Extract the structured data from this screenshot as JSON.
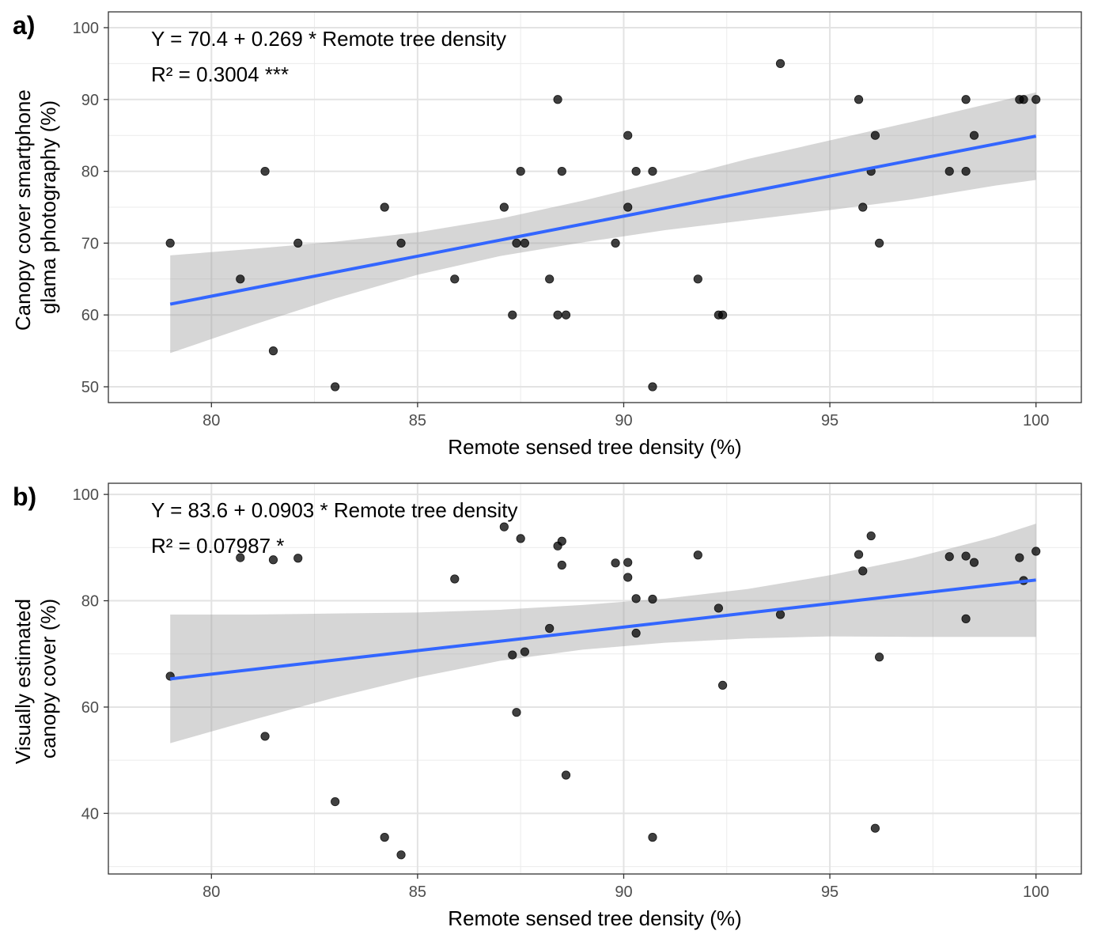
{
  "chart_data": [
    {
      "panel_label": "a)",
      "type": "scatter",
      "xlabel": "Remote sensed tree density (%)",
      "ylabel_lines": [
        "Canopy cover smartphone",
        "glama photography (%)"
      ],
      "xlim": [
        77.5,
        101.1
      ],
      "ylim": [
        47.8,
        102.2
      ],
      "x_ticks": [
        80,
        85,
        90,
        95,
        100
      ],
      "y_ticks": [
        50,
        60,
        70,
        80,
        90,
        100
      ],
      "x_tick_labels": [
        "80",
        "85",
        "90",
        "95",
        "100"
      ],
      "y_tick_labels": [
        "50",
        "60",
        "70",
        "80",
        "90",
        "100"
      ],
      "annotation_lines": [
        "Y = 70.4 + 0.269 * Remote tree density",
        "R² = 0.3004 ***"
      ],
      "regression": {
        "color": "#3366ff",
        "x": [
          79,
          100
        ],
        "y": [
          61.5,
          84.9
        ],
        "ci_x": [
          79,
          81,
          83,
          85,
          87,
          89,
          91,
          93,
          95,
          97,
          99,
          100
        ],
        "ci_lower": [
          54.7,
          58.6,
          62.3,
          65.6,
          68.2,
          70.1,
          71.8,
          73.2,
          74.6,
          76.1,
          78.0,
          78.8
        ],
        "ci_upper": [
          68.3,
          69.2,
          70.2,
          71.5,
          73.4,
          75.9,
          78.7,
          81.7,
          84.3,
          86.9,
          89.6,
          91.0
        ]
      },
      "points": [
        {
          "x": 79.0,
          "y": 70
        },
        {
          "x": 80.7,
          "y": 65
        },
        {
          "x": 81.3,
          "y": 80
        },
        {
          "x": 81.5,
          "y": 55
        },
        {
          "x": 82.1,
          "y": 70
        },
        {
          "x": 83.0,
          "y": 50
        },
        {
          "x": 84.2,
          "y": 75
        },
        {
          "x": 84.6,
          "y": 70
        },
        {
          "x": 85.9,
          "y": 65
        },
        {
          "x": 87.1,
          "y": 75
        },
        {
          "x": 87.3,
          "y": 60
        },
        {
          "x": 87.4,
          "y": 70
        },
        {
          "x": 87.5,
          "y": 80
        },
        {
          "x": 87.6,
          "y": 70
        },
        {
          "x": 88.2,
          "y": 65
        },
        {
          "x": 88.4,
          "y": 90
        },
        {
          "x": 88.4,
          "y": 60
        },
        {
          "x": 88.5,
          "y": 80
        },
        {
          "x": 88.6,
          "y": 60
        },
        {
          "x": 89.8,
          "y": 70
        },
        {
          "x": 90.1,
          "y": 85
        },
        {
          "x": 90.1,
          "y": 75
        },
        {
          "x": 90.3,
          "y": 80
        },
        {
          "x": 90.7,
          "y": 80
        },
        {
          "x": 90.7,
          "y": 50
        },
        {
          "x": 91.8,
          "y": 65
        },
        {
          "x": 92.3,
          "y": 60
        },
        {
          "x": 92.4,
          "y": 60
        },
        {
          "x": 93.8,
          "y": 95
        },
        {
          "x": 95.7,
          "y": 90
        },
        {
          "x": 95.8,
          "y": 75
        },
        {
          "x": 96.0,
          "y": 80
        },
        {
          "x": 96.1,
          "y": 85
        },
        {
          "x": 96.2,
          "y": 70
        },
        {
          "x": 97.9,
          "y": 80
        },
        {
          "x": 98.3,
          "y": 80
        },
        {
          "x": 98.3,
          "y": 90
        },
        {
          "x": 98.5,
          "y": 85
        },
        {
          "x": 99.6,
          "y": 90
        },
        {
          "x": 99.7,
          "y": 90
        },
        {
          "x": 100.0,
          "y": 90
        }
      ],
      "grid": true,
      "legend": "none"
    },
    {
      "panel_label": "b)",
      "type": "scatter",
      "xlabel": "Remote sensed tree density (%)",
      "ylabel_lines": [
        "Visually estimated",
        "canopy cover (%)"
      ],
      "xlim": [
        77.5,
        101.1
      ],
      "ylim": [
        28.6,
        102.1
      ],
      "x_ticks": [
        80,
        85,
        90,
        95,
        100
      ],
      "y_ticks": [
        40,
        60,
        80,
        100
      ],
      "x_tick_labels": [
        "80",
        "85",
        "90",
        "95",
        "100"
      ],
      "y_tick_labels": [
        "40",
        "60",
        "80",
        "100"
      ],
      "annotation_lines": [
        "Y = 83.6 + 0.0903 * Remote tree density",
        "R² = 0.07987 *"
      ],
      "regression": {
        "color": "#3366ff",
        "x": [
          79,
          100
        ],
        "y": [
          65.3,
          83.9
        ],
        "ci_x": [
          79,
          81,
          83,
          85,
          87,
          89,
          91,
          93,
          95,
          97,
          99,
          100
        ],
        "ci_lower": [
          53.2,
          57.6,
          61.8,
          65.6,
          68.7,
          70.8,
          72.1,
          72.9,
          73.3,
          73.2,
          73.2,
          73.2
        ],
        "ci_upper": [
          77.4,
          77.4,
          77.6,
          77.8,
          78.3,
          79.2,
          80.4,
          82.2,
          84.8,
          88.0,
          92.0,
          94.5
        ]
      },
      "points": [
        {
          "x": 79.0,
          "y": 65.8
        },
        {
          "x": 80.7,
          "y": 88.1
        },
        {
          "x": 81.3,
          "y": 54.5
        },
        {
          "x": 81.5,
          "y": 87.7
        },
        {
          "x": 82.1,
          "y": 88.0
        },
        {
          "x": 83.0,
          "y": 42.2
        },
        {
          "x": 84.2,
          "y": 35.5
        },
        {
          "x": 84.6,
          "y": 32.2
        },
        {
          "x": 85.9,
          "y": 84.1
        },
        {
          "x": 87.1,
          "y": 93.9
        },
        {
          "x": 87.3,
          "y": 69.8
        },
        {
          "x": 87.4,
          "y": 59.0
        },
        {
          "x": 87.5,
          "y": 91.7
        },
        {
          "x": 87.6,
          "y": 70.4
        },
        {
          "x": 88.2,
          "y": 74.8
        },
        {
          "x": 88.4,
          "y": 90.3
        },
        {
          "x": 88.5,
          "y": 91.2
        },
        {
          "x": 88.5,
          "y": 86.7
        },
        {
          "x": 88.6,
          "y": 47.2
        },
        {
          "x": 89.8,
          "y": 87.1
        },
        {
          "x": 90.1,
          "y": 87.2
        },
        {
          "x": 90.1,
          "y": 84.4
        },
        {
          "x": 90.3,
          "y": 80.4
        },
        {
          "x": 90.3,
          "y": 73.9
        },
        {
          "x": 90.7,
          "y": 80.3
        },
        {
          "x": 90.7,
          "y": 35.5
        },
        {
          "x": 91.8,
          "y": 88.6
        },
        {
          "x": 92.3,
          "y": 78.6
        },
        {
          "x": 92.4,
          "y": 64.1
        },
        {
          "x": 93.8,
          "y": 77.4
        },
        {
          "x": 95.7,
          "y": 88.7
        },
        {
          "x": 95.8,
          "y": 85.6
        },
        {
          "x": 96.0,
          "y": 92.2
        },
        {
          "x": 96.1,
          "y": 37.2
        },
        {
          "x": 96.2,
          "y": 69.4
        },
        {
          "x": 97.9,
          "y": 88.3
        },
        {
          "x": 98.3,
          "y": 88.4
        },
        {
          "x": 98.3,
          "y": 76.6
        },
        {
          "x": 98.5,
          "y": 87.2
        },
        {
          "x": 99.6,
          "y": 88.1
        },
        {
          "x": 99.7,
          "y": 83.8
        },
        {
          "x": 100.0,
          "y": 89.3
        }
      ],
      "grid": true,
      "legend": "none"
    }
  ]
}
